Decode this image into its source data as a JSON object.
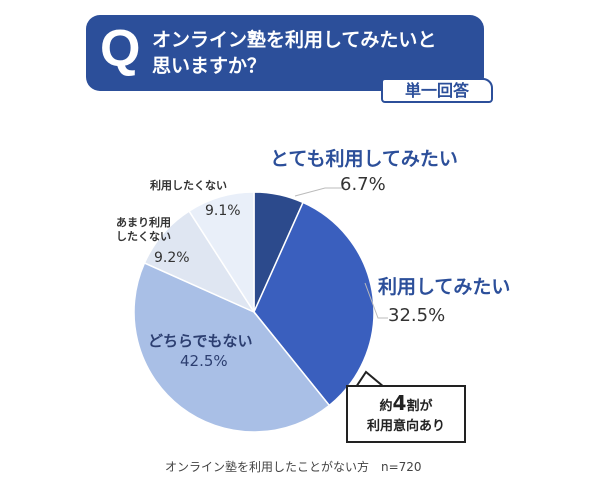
{
  "header": {
    "q_mark": "Q",
    "question": "オンライン塾を利用してみたいと思いますか？",
    "badge": "単一回答"
  },
  "chart_data": {
    "type": "pie",
    "slices": [
      {
        "label": "とても利用してみたい",
        "value": 6.7,
        "display": "6.7%",
        "color": "#2c4a8c"
      },
      {
        "label": "利用してみたい",
        "value": 32.5,
        "display": "32.5%",
        "color": "#3a5fbe"
      },
      {
        "label": "どちらでもない",
        "value": 42.5,
        "display": "42.5%",
        "color": "#a9bfe6"
      },
      {
        "label": "あまり利用したくない",
        "value": 9.2,
        "display": "9.2%",
        "color": "#dfe6f2"
      },
      {
        "label": "利用したくない",
        "value": 9.1,
        "display": "9.1%",
        "color": "#e9eff9"
      }
    ],
    "start": "top",
    "direction": "clockwise"
  },
  "callout": {
    "pre": "約",
    "num": "4",
    "post": "割が",
    "line2": "利用意向あり"
  },
  "footnote": "オンライン塾を利用したことがない方　n=720"
}
